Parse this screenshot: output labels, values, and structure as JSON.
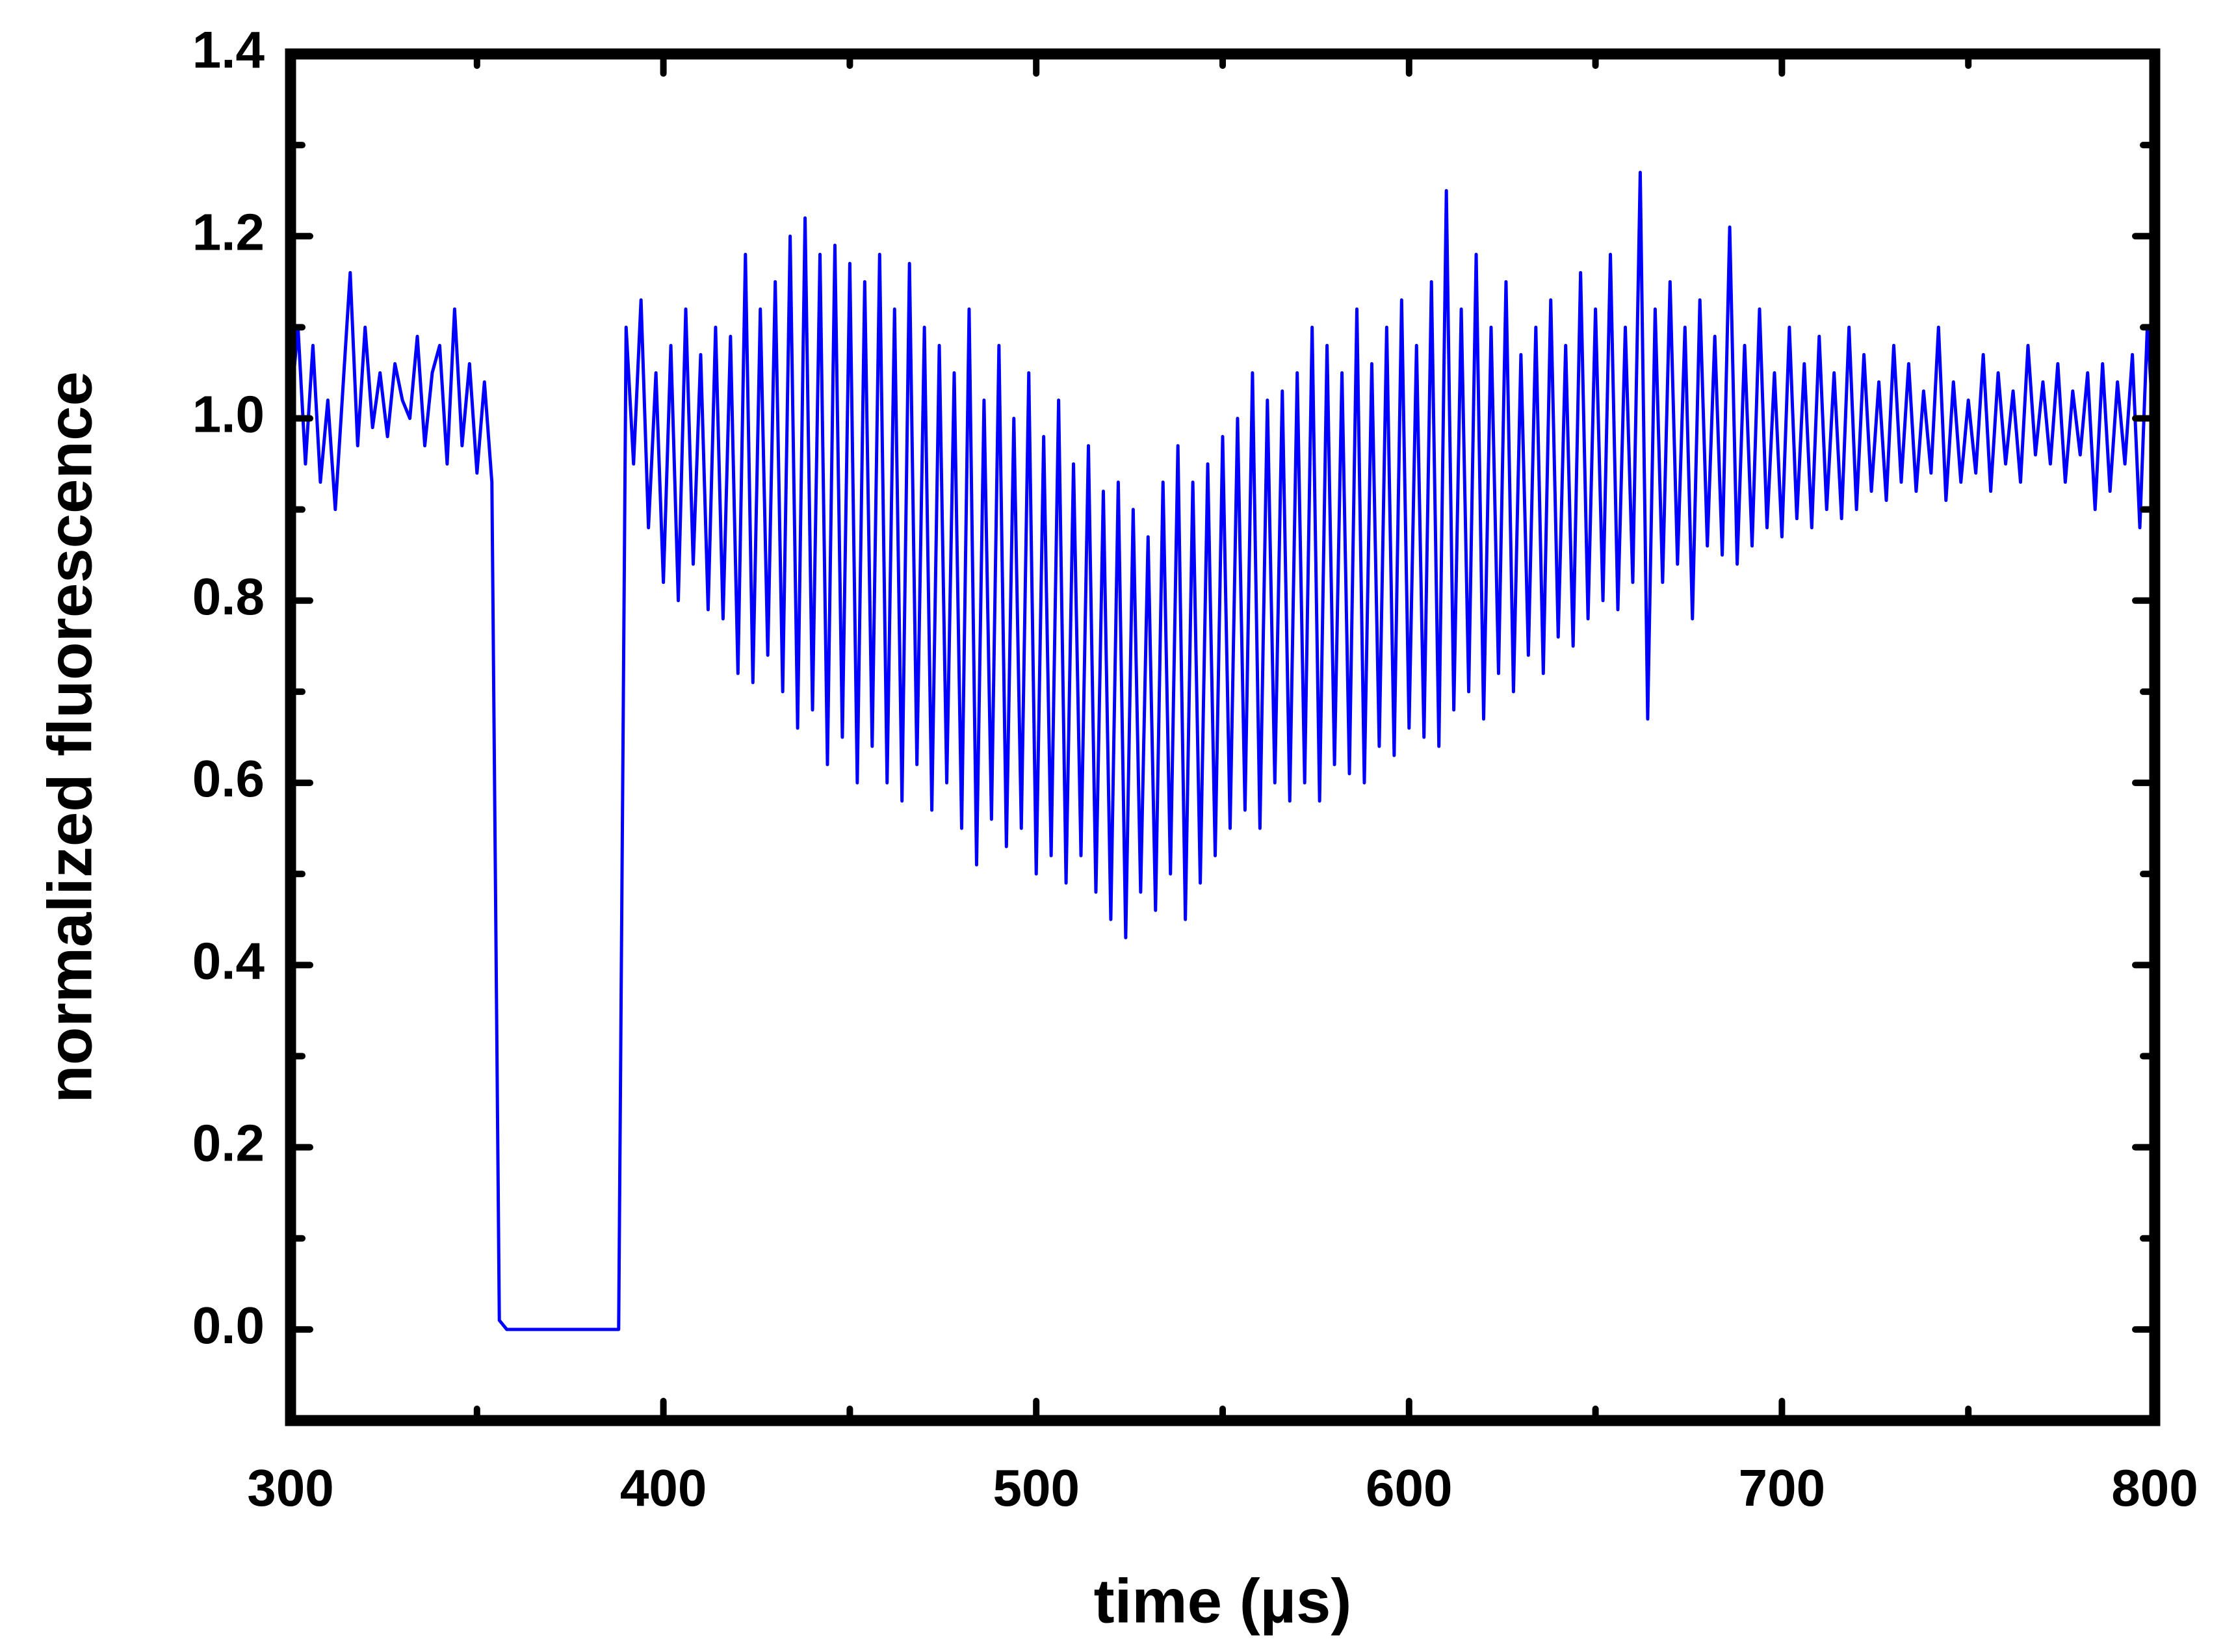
{
  "chart_data": {
    "type": "line",
    "xlabel": "time (µs)",
    "ylabel": "normalized fluorescence",
    "xlim": [
      300,
      800
    ],
    "ylim": [
      -0.1,
      1.4
    ],
    "xticks": [
      300,
      400,
      500,
      600,
      700,
      800
    ],
    "yticks": [
      {
        "value": 0,
        "label": "0.0"
      },
      0.2,
      0.4,
      0.6,
      0.8,
      {
        "value": 1,
        "label": "1.0"
      },
      1.2,
      1.4
    ],
    "xminorticks": [
      350,
      450,
      550,
      650,
      750
    ],
    "yminorticks": [
      0.1,
      0.3,
      0.5,
      0.7,
      0.9,
      1.1,
      1.3
    ],
    "grid": false,
    "series": [
      {
        "color": "#0000ff",
        "x": [
          300,
          302,
          304,
          306,
          308,
          310,
          312,
          314,
          316,
          318,
          320,
          322,
          324,
          326,
          328,
          330,
          332,
          334,
          336,
          338,
          340,
          342,
          344,
          346,
          348,
          350,
          352,
          354,
          356,
          358,
          360,
          362,
          364,
          366,
          368,
          370,
          372,
          374,
          376,
          378,
          380,
          382,
          384,
          386,
          388,
          390,
          392,
          394,
          396,
          398,
          400,
          402,
          404,
          406,
          408,
          410,
          412,
          414,
          416,
          418,
          420,
          422,
          424,
          426,
          428,
          430,
          432,
          434,
          436,
          438,
          440,
          442,
          444,
          446,
          448,
          450,
          452,
          454,
          456,
          458,
          460,
          462,
          464,
          466,
          468,
          470,
          472,
          474,
          476,
          478,
          480,
          482,
          484,
          486,
          488,
          490,
          492,
          494,
          496,
          498,
          500,
          502,
          504,
          506,
          508,
          510,
          512,
          514,
          516,
          518,
          520,
          522,
          524,
          526,
          528,
          530,
          532,
          534,
          536,
          538,
          540,
          542,
          544,
          546,
          548,
          550,
          552,
          554,
          556,
          558,
          560,
          562,
          564,
          566,
          568,
          570,
          572,
          574,
          576,
          578,
          580,
          582,
          584,
          586,
          588,
          590,
          592,
          594,
          596,
          598,
          600,
          602,
          604,
          606,
          608,
          610,
          612,
          614,
          616,
          618,
          620,
          622,
          624,
          626,
          628,
          630,
          632,
          634,
          636,
          638,
          640,
          642,
          644,
          646,
          648,
          650,
          652,
          654,
          656,
          658,
          660,
          662,
          664,
          666,
          668,
          670,
          672,
          674,
          676,
          678,
          680,
          682,
          684,
          686,
          688,
          690,
          692,
          694,
          696,
          698,
          700,
          702,
          704,
          706,
          708,
          710,
          712,
          714,
          716,
          718,
          720,
          722,
          724,
          726,
          728,
          730,
          732,
          734,
          736,
          738,
          740,
          742,
          744,
          746,
          748,
          750,
          752,
          754,
          756,
          758,
          760,
          762,
          764,
          766,
          768,
          770,
          772,
          774,
          776,
          778,
          780,
          782,
          784,
          786,
          788,
          790,
          792,
          794,
          796,
          798,
          800
        ],
        "values": [
          1.01,
          1.1,
          0.95,
          1.08,
          0.93,
          1.02,
          0.9,
          1.03,
          1.16,
          0.97,
          1.1,
          0.99,
          1.05,
          0.98,
          1.06,
          1.02,
          1.0,
          1.09,
          0.97,
          1.05,
          1.08,
          0.95,
          1.12,
          0.97,
          1.06,
          0.94,
          1.04,
          0.93,
          0.01,
          0,
          0,
          0,
          0,
          0,
          0,
          0,
          0,
          0,
          0,
          0,
          0,
          0,
          0,
          0,
          0,
          1.1,
          0.95,
          1.13,
          0.88,
          1.05,
          0.82,
          1.08,
          0.8,
          1.12,
          0.84,
          1.07,
          0.79,
          1.1,
          0.78,
          1.09,
          0.72,
          1.18,
          0.71,
          1.12,
          0.74,
          1.15,
          0.7,
          1.2,
          0.66,
          1.22,
          0.68,
          1.18,
          0.62,
          1.19,
          0.65,
          1.17,
          0.6,
          1.15,
          0.64,
          1.18,
          0.6,
          1.12,
          0.58,
          1.17,
          0.62,
          1.1,
          0.57,
          1.08,
          0.6,
          1.05,
          0.55,
          1.12,
          0.51,
          1.02,
          0.56,
          1.08,
          0.53,
          1.0,
          0.55,
          1.05,
          0.5,
          0.98,
          0.52,
          1.02,
          0.49,
          0.95,
          0.52,
          0.97,
          0.48,
          0.92,
          0.45,
          0.93,
          0.43,
          0.9,
          0.48,
          0.87,
          0.46,
          0.93,
          0.5,
          0.97,
          0.45,
          0.93,
          0.49,
          0.95,
          0.52,
          0.98,
          0.55,
          1.0,
          0.57,
          1.05,
          0.55,
          1.02,
          0.6,
          1.03,
          0.58,
          1.05,
          0.6,
          1.1,
          0.58,
          1.08,
          0.62,
          1.05,
          0.61,
          1.12,
          0.6,
          1.06,
          0.64,
          1.1,
          0.63,
          1.13,
          0.66,
          1.08,
          0.65,
          1.15,
          0.64,
          1.25,
          0.68,
          1.12,
          0.7,
          1.18,
          0.67,
          1.1,
          0.72,
          1.15,
          0.7,
          1.07,
          0.74,
          1.1,
          0.72,
          1.13,
          0.76,
          1.08,
          0.75,
          1.16,
          0.78,
          1.12,
          0.8,
          1.18,
          0.79,
          1.1,
          0.82,
          1.27,
          0.67,
          1.12,
          0.82,
          1.15,
          0.84,
          1.1,
          0.78,
          1.13,
          0.86,
          1.09,
          0.85,
          1.21,
          0.84,
          1.08,
          0.86,
          1.12,
          0.88,
          1.05,
          0.87,
          1.1,
          0.89,
          1.06,
          0.88,
          1.09,
          0.9,
          1.05,
          0.89,
          1.1,
          0.9,
          1.07,
          0.92,
          1.04,
          0.91,
          1.08,
          0.93,
          1.06,
          0.92,
          1.03,
          0.94,
          1.1,
          0.91,
          1.04,
          0.93,
          1.02,
          0.94,
          1.07,
          0.92,
          1.05,
          0.95,
          1.03,
          0.93,
          1.08,
          0.96,
          1.04,
          0.95,
          1.06,
          0.93,
          1.03,
          0.96,
          1.05,
          0.9,
          1.06,
          0.92,
          1.04,
          0.95,
          1.07,
          0.88,
          1.1,
          0.97
        ]
      }
    ]
  }
}
